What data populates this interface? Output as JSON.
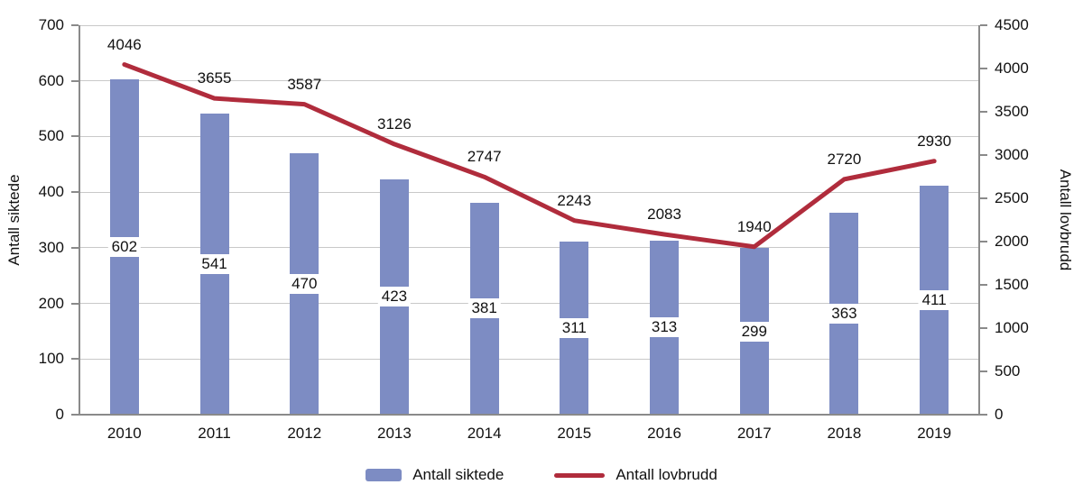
{
  "chart_data": {
    "type": "bar+line",
    "categories": [
      "2010",
      "2011",
      "2012",
      "2013",
      "2014",
      "2015",
      "2016",
      "2017",
      "2018",
      "2019"
    ],
    "series": [
      {
        "name": "Antall siktede",
        "type": "bar",
        "axis": "left",
        "color": "#7d8cc3",
        "values": [
          602,
          541,
          470,
          423,
          381,
          311,
          313,
          299,
          363,
          411
        ]
      },
      {
        "name": "Antall lovbrudd",
        "type": "line",
        "axis": "right",
        "color": "#b02c3c",
        "values": [
          4046,
          3655,
          3587,
          3126,
          2747,
          2243,
          2083,
          1940,
          2720,
          2930
        ]
      }
    ],
    "left_axis": {
      "label": "Antall siktede",
      "min": 0,
      "max": 700,
      "step": 100
    },
    "right_axis": {
      "label": "Antall lovbrudd",
      "min": 0,
      "max": 4500,
      "step": 500
    },
    "grid": true,
    "legend_position": "bottom"
  }
}
